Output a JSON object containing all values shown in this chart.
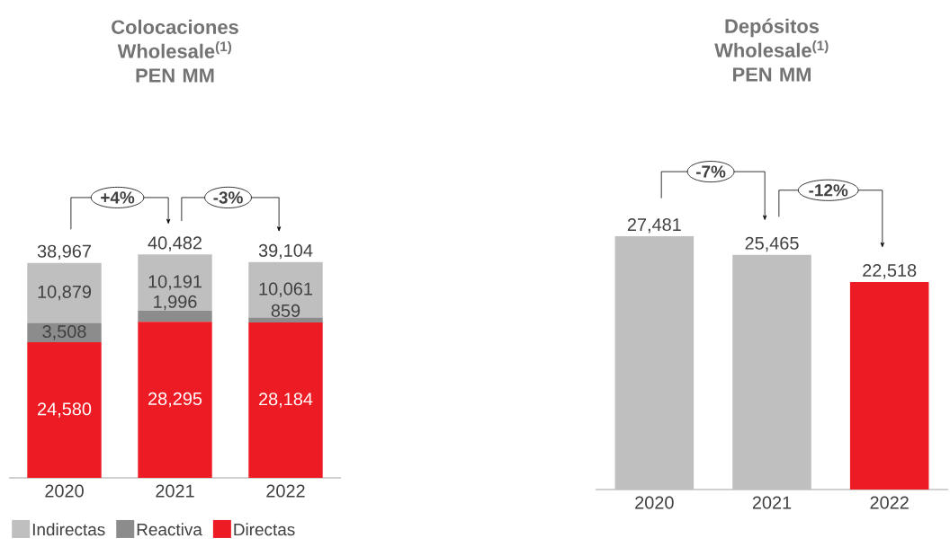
{
  "chart_data": [
    {
      "type": "bar",
      "title": "Colocaciones Wholesale$^{(1)}$ PEN MM",
      "categories": [
        "2020",
        "2021",
        "2022"
      ],
      "stacked": true,
      "tick_labels": "x",
      "legend": "bottom",
      "series": [
        {
          "name": "Directas",
          "color": "#ed1c24",
          "values": [
            24580,
            28295,
            28184
          ],
          "value_labels": [
            "24,580",
            "28,295",
            "28,184"
          ]
        },
        {
          "name": "Reactiva",
          "color": "#8c8c8c",
          "values": [
            3508,
            1996,
            859
          ],
          "value_labels": [
            "3,508",
            "1,996",
            "859"
          ]
        },
        {
          "name": "Indirectas",
          "color": "#bfbfbf",
          "values": [
            10879,
            10191,
            10061
          ],
          "value_labels": [
            "10,879",
            "10,191",
            "10,061"
          ]
        }
      ],
      "totals": [
        "38,967",
        "40,482",
        "39,104"
      ],
      "annotations": [
        "+4%",
        "-3%"
      ]
    },
    {
      "type": "bar",
      "title": "Depósitos Wholesale$^{(1)}$ PEN MM",
      "categories": [
        "2020",
        "2021",
        "2022"
      ],
      "tick_labels": "x",
      "values": [
        27481,
        25465,
        22518
      ],
      "colors": [
        "#bfbfbf",
        "#bfbfbf",
        "#ed1c24"
      ],
      "value_labels": [
        "27,481",
        "25,465",
        "22,518"
      ],
      "annotations": [
        "-7%",
        "-12%"
      ]
    }
  ]
}
